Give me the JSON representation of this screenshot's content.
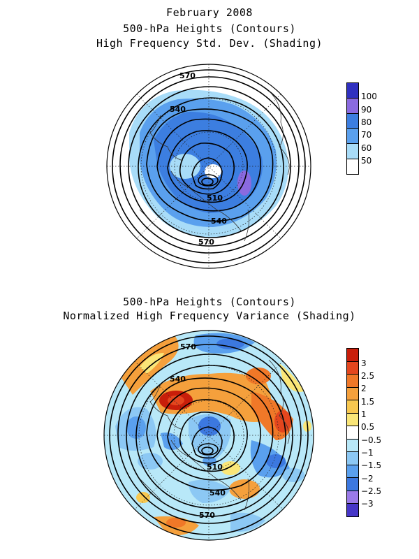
{
  "top_panel": {
    "title_lines": [
      "February 2008",
      "500-hPa Heights (Contours)",
      "High Frequency Std. Dev. (Shading)"
    ],
    "contour_labels": [
      "570",
      "540",
      "510",
      "540",
      "570"
    ],
    "colorbar": {
      "labels": [
        "100",
        "90",
        "80",
        "70",
        "60",
        "50"
      ],
      "colors": [
        "#3030c0",
        "#8a6ae0",
        "#3c7ee0",
        "#5aa0ee",
        "#a8dcf8",
        "#ffffff"
      ]
    }
  },
  "bottom_panel": {
    "title_lines": [
      "500-hPa Heights (Contours)",
      "Normalized High Frequency Variance (Shading)"
    ],
    "contour_labels": [
      "570",
      "540",
      "510",
      "540",
      "570"
    ],
    "colorbar": {
      "labels": [
        "3",
        "2.5",
        "2",
        "1.5",
        "1",
        "0.5",
        "−0.5",
        "−1",
        "−1.5",
        "−2",
        "−2.5",
        "−3"
      ],
      "colors": [
        "#c81e0a",
        "#e4461e",
        "#f07828",
        "#f5a03c",
        "#f8c850",
        "#fae678",
        "#ffffff",
        "#b8e8f8",
        "#8cc8f4",
        "#5aa0ee",
        "#3c78e0",
        "#9a7ae8",
        "#4636c8"
      ]
    }
  }
}
